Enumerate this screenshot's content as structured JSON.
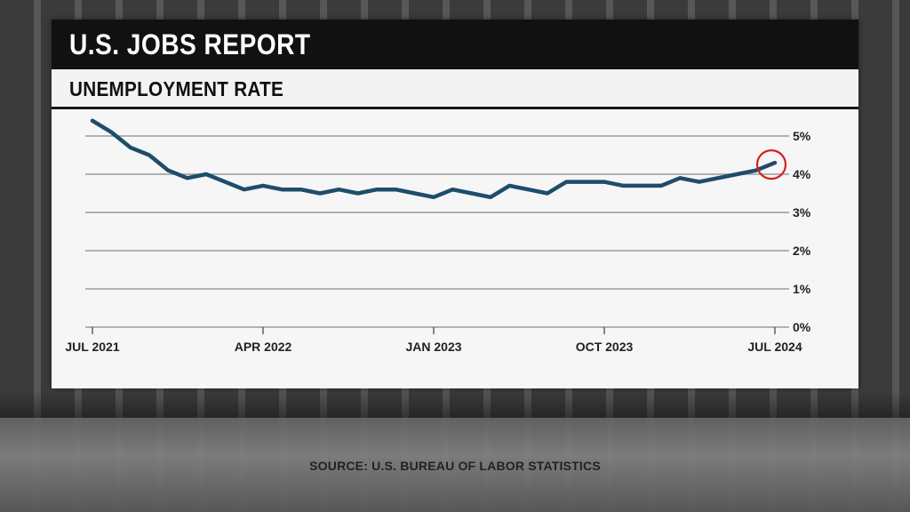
{
  "header": {
    "title": "U.S. JOBS REPORT",
    "subtitle": "UNEMPLOYMENT RATE"
  },
  "footer": {
    "source": "SOURCE: U.S. BUREAU OF LABOR STATISTICS"
  },
  "colors": {
    "line": "#1e4d6b",
    "highlight": "#d42020",
    "grid": "#9a9a9a"
  },
  "chart_data": {
    "type": "line",
    "title": "UNEMPLOYMENT RATE",
    "ylim": [
      0,
      5.4
    ],
    "y_ticks": [
      {
        "value": 0,
        "label": "0%"
      },
      {
        "value": 1,
        "label": "1%"
      },
      {
        "value": 2,
        "label": "2%"
      },
      {
        "value": 3,
        "label": "3%"
      },
      {
        "value": 4,
        "label": "4%"
      },
      {
        "value": 5,
        "label": "5%"
      }
    ],
    "x_ticks": [
      {
        "index": 0,
        "label": "JUL 2021"
      },
      {
        "index": 9,
        "label": "APR 2022"
      },
      {
        "index": 18,
        "label": "JAN 2023"
      },
      {
        "index": 27,
        "label": "OCT 2023"
      },
      {
        "index": 36,
        "label": "JUL 2024"
      }
    ],
    "grid": true,
    "highlight_last_point": true,
    "series": [
      {
        "values": [
          5.4,
          5.1,
          4.7,
          4.5,
          4.1,
          3.9,
          4.0,
          3.8,
          3.6,
          3.7,
          3.6,
          3.6,
          3.5,
          3.6,
          3.5,
          3.6,
          3.6,
          3.5,
          3.4,
          3.6,
          3.5,
          3.4,
          3.7,
          3.6,
          3.5,
          3.8,
          3.8,
          3.8,
          3.7,
          3.7,
          3.7,
          3.9,
          3.8,
          3.9,
          4.0,
          4.1,
          4.3
        ]
      }
    ]
  }
}
